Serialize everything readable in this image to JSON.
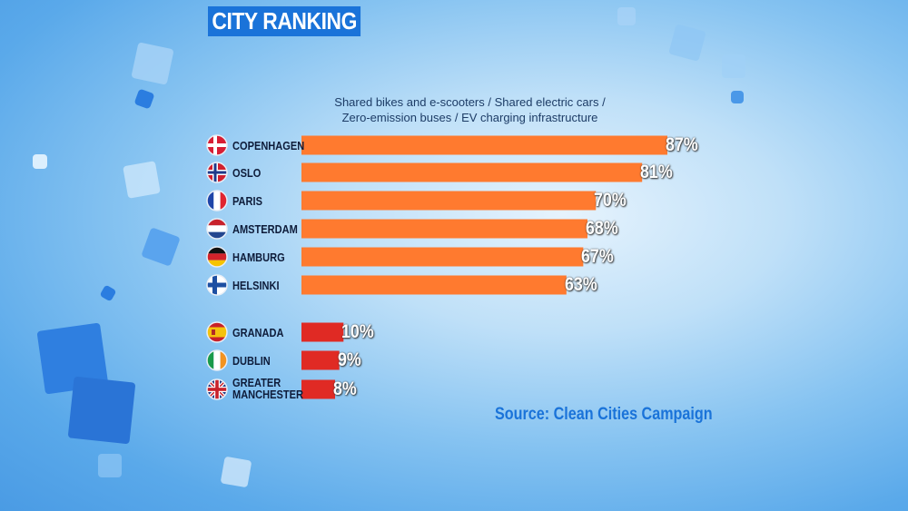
{
  "title": "CITY RANKING",
  "subtitle_lines": [
    "Shared bikes and e-scooters / Shared electric cars /",
    "Zero-emission buses / EV charging infrastructure"
  ],
  "source": "Source: Clean Cities Campaign",
  "colors": {
    "top": "#ff7a2f",
    "bottom": "#e02a24",
    "title_bg": "#1a73d9",
    "source": "#1a73d9"
  },
  "chart_data": {
    "type": "bar",
    "orientation": "horizontal",
    "title": "CITY RANKING",
    "categories": [
      "COPENHAGEN",
      "OSLO",
      "PARIS",
      "AMSTERDAM",
      "HAMBURG",
      "HELSINKI",
      "GRANADA",
      "DUBLIN",
      "GREATER MANCHESTER"
    ],
    "values": [
      87,
      81,
      70,
      68,
      67,
      63,
      10,
      9,
      8
    ],
    "labels": [
      "87%",
      "81%",
      "70%",
      "68%",
      "67%",
      "63%",
      "10%",
      "9%",
      "8%"
    ],
    "flags": [
      "denmark-flag-icon",
      "norway-flag-icon",
      "france-flag-icon",
      "netherlands-flag-icon",
      "germany-flag-icon",
      "finland-flag-icon",
      "spain-flag-icon",
      "ireland-flag-icon",
      "uk-flag-icon"
    ],
    "groups": [
      "top",
      "top",
      "top",
      "top",
      "top",
      "top",
      "bottom",
      "bottom",
      "bottom"
    ],
    "xlim": [
      0,
      100
    ],
    "grid": false,
    "legend": "none"
  }
}
